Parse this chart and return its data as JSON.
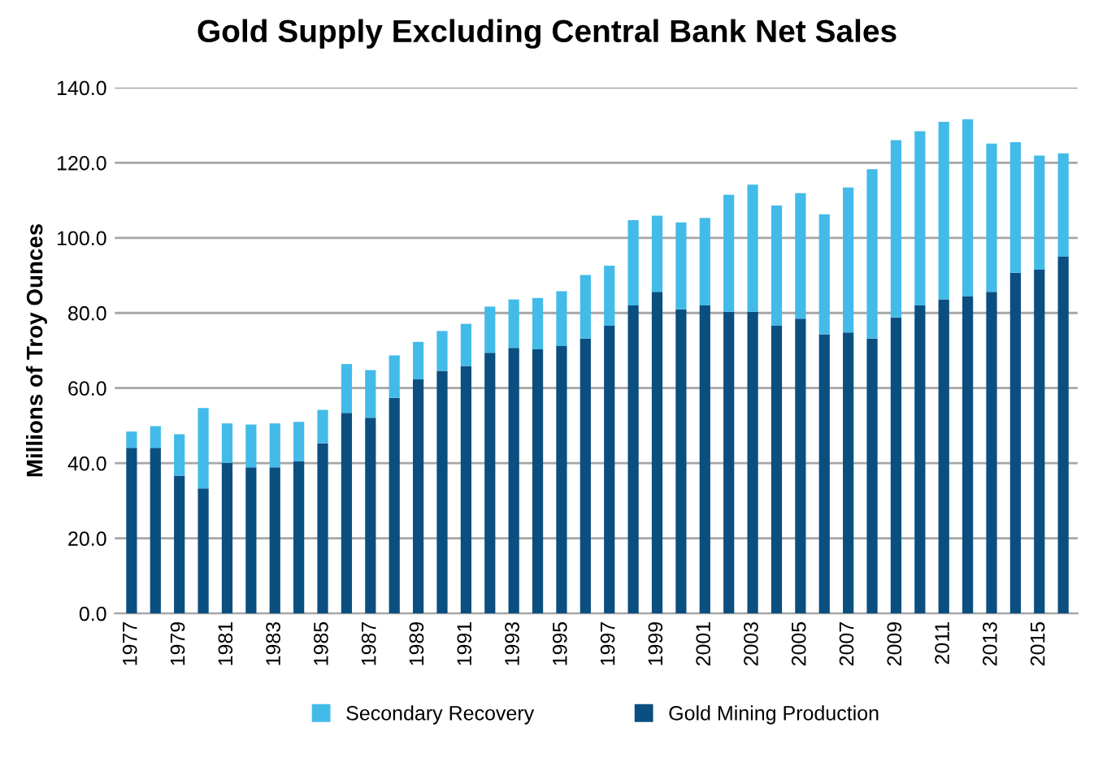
{
  "chart_data": {
    "type": "bar",
    "title": "Gold Supply Excluding Central Bank Net Sales",
    "ylabel": "Millions of Troy Ounces",
    "categories": [
      "1977",
      null,
      "1979",
      null,
      "1981",
      null,
      "1983",
      null,
      "1985",
      null,
      "1987",
      null,
      "1989",
      null,
      "1991",
      null,
      "1993",
      null,
      "1995",
      null,
      "1997",
      null,
      "1999",
      null,
      "2001",
      null,
      "2003",
      null,
      "2005",
      null,
      "2007",
      null,
      "2009",
      null,
      "2011",
      null,
      "2013",
      null,
      "2015",
      null
    ],
    "stacked": true,
    "series": [
      {
        "name": "Gold Mining Production",
        "color": "#0a4f80",
        "values": [
          44.1,
          44.1,
          36.7,
          33.3,
          40.1,
          38.9,
          38.9,
          40.5,
          45.3,
          53.4,
          52.1,
          57.4,
          62.3,
          64.6,
          65.9,
          69.4,
          70.7,
          70.3,
          71.2,
          73.2,
          76.6,
          82.0,
          85.6,
          81.0,
          82.0,
          80.3,
          80.3,
          76.6,
          78.5,
          74.3,
          74.8,
          73.2,
          78.8,
          82.0,
          83.6,
          84.5,
          85.6,
          90.7,
          91.5,
          95.0
        ]
      },
      {
        "name": "Secondary Recovery",
        "color": "#43bbe9",
        "values": [
          4.3,
          5.8,
          11.0,
          21.4,
          10.5,
          11.4,
          11.7,
          10.5,
          8.9,
          13.0,
          12.7,
          11.3,
          10.0,
          10.6,
          11.2,
          12.3,
          12.9,
          13.7,
          14.6,
          16.9,
          16.0,
          22.7,
          20.3,
          23.1,
          23.3,
          31.2,
          33.9,
          32.0,
          33.4,
          32.0,
          38.6,
          45.1,
          47.2,
          46.4,
          47.3,
          47.1,
          39.5,
          34.8,
          30.4,
          27.5
        ]
      }
    ],
    "ylim": [
      0,
      140
    ],
    "yticks": [
      {
        "value": 0,
        "label": "0.0"
      },
      {
        "value": 20,
        "label": "20.0"
      },
      {
        "value": 40,
        "label": "40.0"
      },
      {
        "value": 60,
        "label": "60.0"
      },
      {
        "value": 80,
        "label": "80.0"
      },
      {
        "value": 100,
        "label": "100.0"
      },
      {
        "value": 120,
        "label": "120.0"
      },
      {
        "value": 140,
        "label": "140.0"
      }
    ],
    "grid": "y",
    "legend": "bottom"
  }
}
